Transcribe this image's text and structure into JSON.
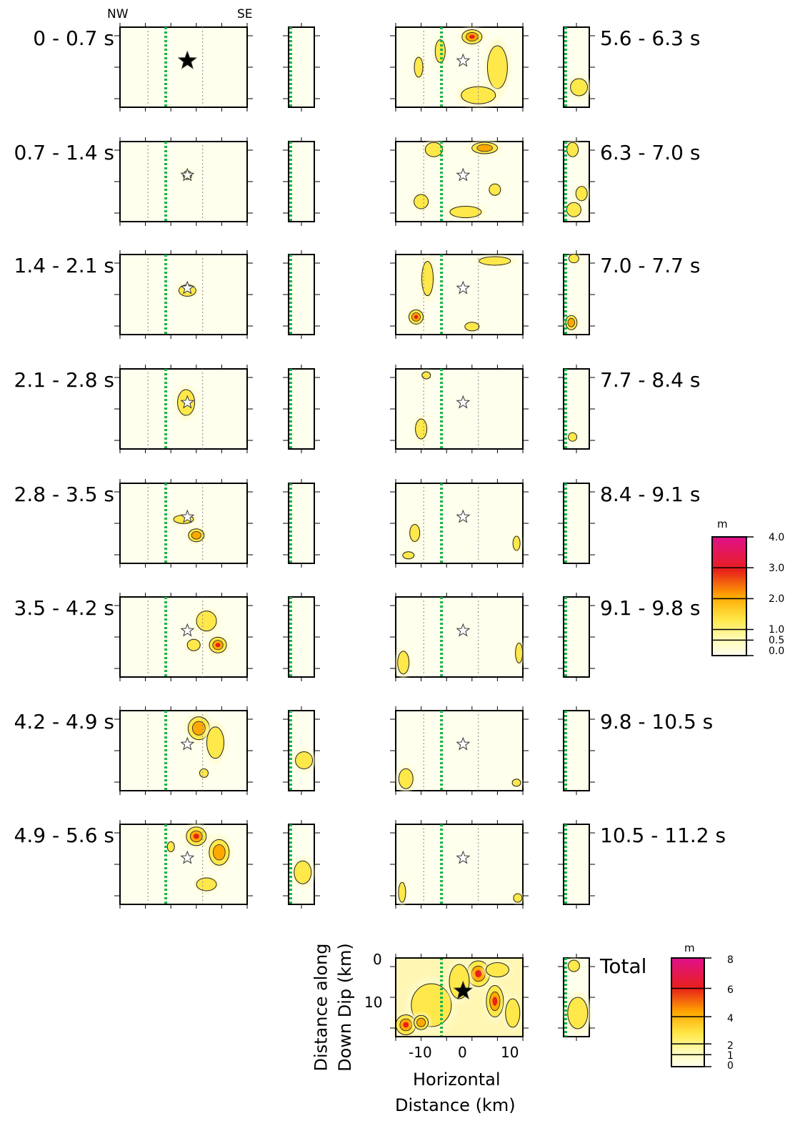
{
  "figure": {
    "direction_labels": {
      "left": "NW",
      "right": "SE"
    },
    "windows_left": [
      "0 - 0.7 s",
      "0.7 - 1.4 s",
      "1.4 - 2.1 s",
      "2.1 - 2.8 s",
      "2.8 - 3.5 s",
      "3.5 - 4.2 s",
      "4.2 - 4.9 s",
      "4.9 - 5.6 s"
    ],
    "windows_right": [
      "5.6 - 6.3 s",
      "6.3 - 7.0 s",
      "7.0 - 7.7 s",
      "7.7 - 8.4 s",
      "8.4 - 9.1 s",
      "9.1 - 9.8 s",
      "9.8 - 10.5 s",
      "10.5 - 11.2 s"
    ],
    "total_label": "Total",
    "axes": {
      "x_label_line1": "Horizontal",
      "x_label_line2": "Distance (km)",
      "y_label_line1": "Distance along",
      "y_label_line2": "Down Dip (km)",
      "x_ticks": [
        "-10",
        "0",
        "10"
      ],
      "y_ticks": [
        "0",
        "10"
      ]
    },
    "colorbar_window": {
      "unit": "m",
      "ticks": [
        "4.0",
        "3.0",
        "2.0",
        "1.0",
        "0.5",
        "0.0"
      ]
    },
    "colorbar_total": {
      "unit": "m",
      "ticks": [
        "8",
        "6",
        "4",
        "2",
        "1",
        "0"
      ]
    },
    "colors": {
      "low": "#ffffee",
      "yellow": "#ffe84a",
      "orange": "#ffa800",
      "red": "#e8201a",
      "magenta": "#e0108c",
      "fault_trace": "#19b34a",
      "grid": "#888888"
    }
  }
}
